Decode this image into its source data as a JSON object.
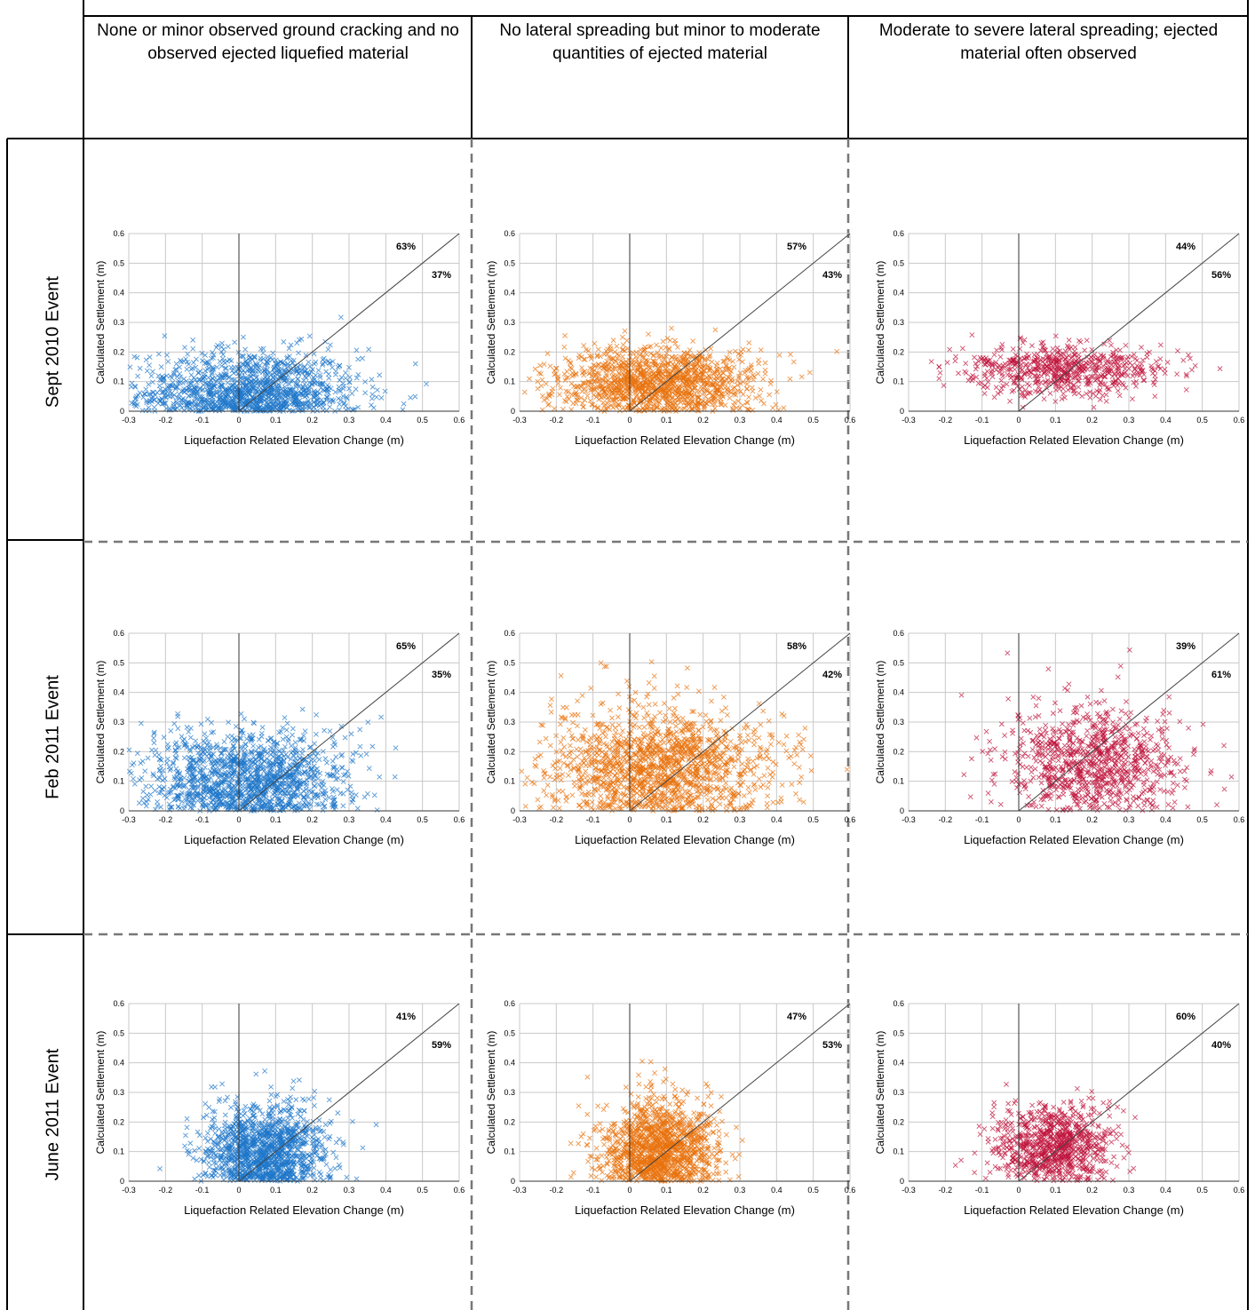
{
  "column_headers": [
    "None or minor observed ground cracking and no observed ejected liquefied material",
    "No lateral spreading but minor to moderate quantities of ejected material",
    "Moderate to severe lateral spreading; ejected material often observed"
  ],
  "row_labels": [
    "Sept 2010 Event",
    "Feb 2011 Event",
    "June 2011 Event"
  ],
  "colors": {
    "series1": "#1f77c9",
    "series2": "#e8720c",
    "series3": "#c0143c"
  },
  "chart_data": [
    {
      "type": "scatter",
      "row": "Sept 2010 Event",
      "column": 1,
      "xlabel": "Liquefaction Related Elevation Change (m)",
      "ylabel": "Calculated  Settlement (m)",
      "xlim": [
        -0.3,
        0.6
      ],
      "ylim": [
        0,
        0.6
      ],
      "xticks": [
        "-0.3",
        "-0.2",
        "-0.1",
        "0",
        "0.1",
        "0.2",
        "0.3",
        "0.4",
        "0.5",
        "0.6"
      ],
      "yticks": [
        "0",
        "0.1",
        "0.2",
        "0.3",
        "0.4",
        "0.5",
        "0.6"
      ],
      "grid": true,
      "reference_line": "1:1",
      "pct_above": "63%",
      "pct_below": "37%",
      "marker": "x",
      "color": "#1f77c9",
      "cloud": {
        "cx": 0.03,
        "sx": 0.15,
        "cy": 0.06,
        "sy": 0.075,
        "n": 1300,
        "xmin": -0.3,
        "xmax": 0.6,
        "ymax": 0.48
      }
    },
    {
      "type": "scatter",
      "row": "Sept 2010 Event",
      "column": 2,
      "xlabel": "Liquefaction Related Elevation Change (m)",
      "ylabel": "Calculated  Settlement (m)",
      "xlim": [
        -0.3,
        0.6
      ],
      "ylim": [
        0,
        0.6
      ],
      "xticks": [
        "-0.3",
        "-0.2",
        "-0.1",
        "0",
        "0.1",
        "0.2",
        "0.3",
        "0.4",
        "0.5",
        "0.6"
      ],
      "yticks": [
        "0",
        "0.1",
        "0.2",
        "0.3",
        "0.4",
        "0.5",
        "0.6"
      ],
      "grid": true,
      "reference_line": "1:1",
      "pct_above": "57%",
      "pct_below": "43%",
      "marker": "x",
      "color": "#e8720c",
      "cloud": {
        "cx": 0.08,
        "sx": 0.14,
        "cy": 0.1,
        "sy": 0.06,
        "n": 1300,
        "xmin": -0.3,
        "xmax": 0.6,
        "ymax": 0.5
      }
    },
    {
      "type": "scatter",
      "row": "Sept 2010 Event",
      "column": 3,
      "xlabel": "Liquefaction Related Elevation Change (m)",
      "ylabel": "Calculated  Settlement (m)",
      "xlim": [
        -0.3,
        0.6
      ],
      "ylim": [
        0,
        0.6
      ],
      "xticks": [
        "-0.3",
        "-0.2",
        "-0.1",
        "0",
        "0.1",
        "0.2",
        "0.3",
        "0.4",
        "0.5",
        "0.6"
      ],
      "yticks": [
        "0",
        "0.1",
        "0.2",
        "0.3",
        "0.4",
        "0.5",
        "0.6"
      ],
      "grid": true,
      "reference_line": "1:1",
      "pct_above": "44%",
      "pct_below": "56%",
      "marker": "x",
      "color": "#c0143c",
      "cloud": {
        "cx": 0.12,
        "sx": 0.14,
        "cy": 0.14,
        "sy": 0.045,
        "n": 650,
        "xmin": -0.3,
        "xmax": 0.6,
        "ymax": 0.3
      }
    },
    {
      "type": "scatter",
      "row": "Feb 2011 Event",
      "column": 1,
      "xlabel": "Liquefaction Related Elevation Change (m)",
      "ylabel": "Calculated  Settlement (m)",
      "xlim": [
        -0.3,
        0.6
      ],
      "ylim": [
        0,
        0.6
      ],
      "xticks": [
        "-0.3",
        "-0.2",
        "-0.1",
        "0",
        "0.1",
        "0.2",
        "0.3",
        "0.4",
        "0.5",
        "0.6"
      ],
      "yticks": [
        "0",
        "0.1",
        "0.2",
        "0.3",
        "0.4",
        "0.5",
        "0.6"
      ],
      "grid": true,
      "reference_line": "1:1",
      "pct_above": "65%",
      "pct_below": "35%",
      "marker": "x",
      "color": "#1f77c9",
      "cloud": {
        "cx": 0.02,
        "sx": 0.14,
        "cy": 0.1,
        "sy": 0.09,
        "n": 1400,
        "xmin": -0.3,
        "xmax": 0.6,
        "ymax": 0.48
      }
    },
    {
      "type": "scatter",
      "row": "Feb 2011 Event",
      "column": 2,
      "xlabel": "Liquefaction Related Elevation Change (m)",
      "ylabel": "Calculated  Settlement (m)",
      "xlim": [
        -0.3,
        0.6
      ],
      "ylim": [
        0,
        0.6
      ],
      "xticks": [
        "-0.3",
        "-0.2",
        "-0.1",
        "0",
        "0.1",
        "0.2",
        "0.3",
        "0.4",
        "0.5",
        "0.6"
      ],
      "yticks": [
        "0",
        "0.1",
        "0.2",
        "0.3",
        "0.4",
        "0.5",
        "0.6"
      ],
      "grid": true,
      "reference_line": "1:1",
      "pct_above": "58%",
      "pct_below": "42%",
      "marker": "x",
      "color": "#e8720c",
      "cloud": {
        "cx": 0.08,
        "sx": 0.16,
        "cy": 0.15,
        "sy": 0.1,
        "n": 1500,
        "xmin": -0.3,
        "xmax": 0.6,
        "ymax": 0.58
      }
    },
    {
      "type": "scatter",
      "row": "Feb 2011 Event",
      "column": 3,
      "xlabel": "Liquefaction Related Elevation Change (m)",
      "ylabel": "Calculated  Settlement (m)",
      "xlim": [
        -0.3,
        0.6
      ],
      "ylim": [
        0,
        0.6
      ],
      "xticks": [
        "-0.3",
        "-0.2",
        "-0.1",
        "0",
        "0.1",
        "0.2",
        "0.3",
        "0.4",
        "0.5",
        "0.6"
      ],
      "yticks": [
        "0",
        "0.1",
        "0.2",
        "0.3",
        "0.4",
        "0.5",
        "0.6"
      ],
      "grid": true,
      "reference_line": "1:1",
      "pct_above": "39%",
      "pct_below": "61%",
      "marker": "x",
      "color": "#c0143c",
      "cloud": {
        "cx": 0.2,
        "sx": 0.12,
        "cy": 0.17,
        "sy": 0.09,
        "n": 900,
        "xmin": -0.3,
        "xmax": 0.6,
        "ymax": 0.55
      }
    },
    {
      "type": "scatter",
      "row": "June 2011 Event",
      "column": 1,
      "xlabel": "Liquefaction Related Elevation Change (m)",
      "ylabel": "Calculated  Settlement (m)",
      "xlim": [
        -0.3,
        0.6
      ],
      "ylim": [
        0,
        0.6
      ],
      "xticks": [
        "-0.3",
        "-0.2",
        "-0.1",
        "0",
        "0.1",
        "0.2",
        "0.3",
        "0.4",
        "0.5",
        "0.6"
      ],
      "yticks": [
        "0",
        "0.1",
        "0.2",
        "0.3",
        "0.4",
        "0.5",
        "0.6"
      ],
      "grid": true,
      "reference_line": "1:1",
      "pct_above": "41%",
      "pct_below": "59%",
      "marker": "x",
      "color": "#1f77c9",
      "cloud": {
        "cx": 0.07,
        "sx": 0.08,
        "cy": 0.1,
        "sy": 0.08,
        "n": 1300,
        "xmin": -0.3,
        "xmax": 0.6,
        "ymax": 0.46
      }
    },
    {
      "type": "scatter",
      "row": "June 2011 Event",
      "column": 2,
      "xlabel": "Liquefaction Related Elevation Change (m)",
      "ylabel": "Calculated  Settlement (m)",
      "xlim": [
        -0.3,
        0.6
      ],
      "ylim": [
        0,
        0.6
      ],
      "xticks": [
        "-0.3",
        "-0.2",
        "-0.1",
        "0",
        "0.1",
        "0.2",
        "0.3",
        "0.4",
        "0.5",
        "0.6"
      ],
      "yticks": [
        "0",
        "0.1",
        "0.2",
        "0.3",
        "0.4",
        "0.5",
        "0.6"
      ],
      "grid": true,
      "reference_line": "1:1",
      "pct_above": "47%",
      "pct_below": "53%",
      "marker": "x",
      "color": "#e8720c",
      "cloud": {
        "cx": 0.08,
        "sx": 0.08,
        "cy": 0.11,
        "sy": 0.08,
        "n": 1300,
        "xmin": -0.3,
        "xmax": 0.6,
        "ymax": 0.53
      }
    },
    {
      "type": "scatter",
      "row": "June 2011 Event",
      "column": 3,
      "xlabel": "Liquefaction Related Elevation Change (m)",
      "ylabel": "Calculated  Settlement (m)",
      "xlim": [
        -0.3,
        0.6
      ],
      "ylim": [
        0,
        0.6
      ],
      "xticks": [
        "-0.3",
        "-0.2",
        "-0.1",
        "0",
        "0.1",
        "0.2",
        "0.3",
        "0.4",
        "0.5",
        "0.6"
      ],
      "yticks": [
        "0",
        "0.1",
        "0.2",
        "0.3",
        "0.4",
        "0.5",
        "0.6"
      ],
      "grid": true,
      "reference_line": "1:1",
      "pct_above": "60%",
      "pct_below": "40%",
      "marker": "x",
      "color": "#c0143c",
      "cloud": {
        "cx": 0.1,
        "sx": 0.08,
        "cy": 0.12,
        "sy": 0.07,
        "n": 850,
        "xmin": -0.3,
        "xmax": 0.6,
        "ymax": 0.48
      }
    }
  ]
}
